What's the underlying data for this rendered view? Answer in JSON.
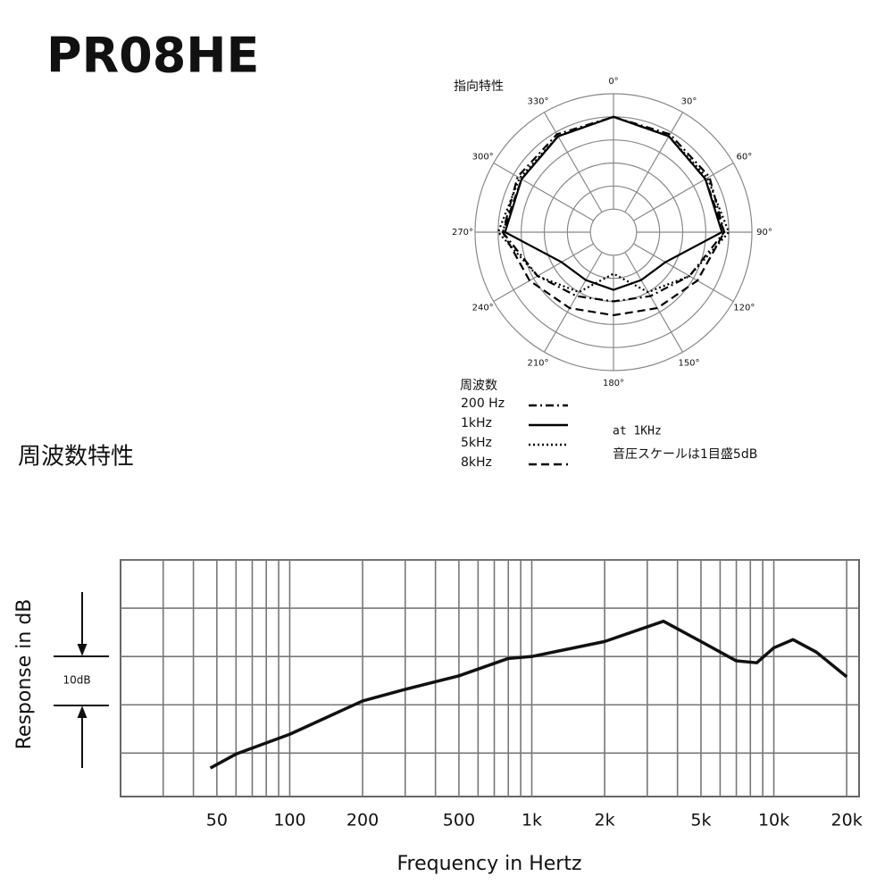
{
  "title": "PR08HE",
  "chart_data": [
    {
      "type": "polar",
      "title": "指向特性",
      "theta": [
        0,
        30,
        60,
        90,
        120,
        150,
        180,
        210,
        240,
        270,
        300,
        330
      ],
      "thetaticks": [
        {
          "value": 0,
          "label": "0°"
        },
        {
          "value": 30,
          "label": "30°"
        },
        {
          "value": 60,
          "label": "60°"
        },
        {
          "value": 90,
          "label": "90°"
        },
        {
          "value": 120,
          "label": "120°"
        },
        {
          "value": 150,
          "label": "150°"
        },
        {
          "value": 180,
          "label": "180°"
        },
        {
          "value": 210,
          "label": "210°"
        },
        {
          "value": 240,
          "label": "240°"
        },
        {
          "value": 270,
          "label": "270°"
        },
        {
          "value": 300,
          "label": "300°"
        },
        {
          "value": 330,
          "label": "330°"
        }
      ],
      "rlim": [
        -25,
        5
      ],
      "rticks": [
        -20,
        -15,
        -10,
        -5,
        0,
        5
      ],
      "legend_title": "周波数",
      "series": [
        {
          "name": "200  Hz",
          "color": "#000",
          "dash": "dashdot",
          "values": [
            0,
            -0.5,
            -1,
            -1,
            -6,
            -9,
            -10,
            -9,
            -6,
            -1,
            -1,
            -0.5
          ]
        },
        {
          "name": "1kHz",
          "color": "#000",
          "dash": "solid",
          "values": [
            0,
            -1,
            -2,
            -1.5,
            -12,
            -13,
            -12.5,
            -13,
            -12,
            -1.5,
            -2,
            -1
          ]
        },
        {
          "name": "5kHz",
          "color": "#000",
          "dash": "dotted",
          "values": [
            0,
            -1,
            -1.5,
            0,
            -6,
            -10,
            -16,
            -10,
            -6,
            0,
            -1.5,
            -1
          ]
        },
        {
          "name": "8kHz",
          "color": "#000",
          "dash": "dashed",
          "values": [
            0,
            -1,
            -2,
            -1,
            -4,
            -6,
            -7,
            -6,
            -4,
            -1,
            -2,
            -1
          ]
        }
      ],
      "notes": [
        "at 1KHz",
        "音圧スケールは1目盛5dB"
      ]
    },
    {
      "type": "line",
      "title": "周波数特性",
      "x_label": "Frequency in Hertz",
      "y_label": "Response in dB",
      "scale_label": "10dB",
      "log_x": true,
      "xlim": [
        20,
        22500
      ],
      "xticks": [
        50,
        100,
        200,
        500,
        {
          "value": 1000,
          "label": "1k"
        },
        {
          "value": 2000,
          "label": "2k"
        },
        {
          "value": 5000,
          "label": "5k"
        },
        {
          "value": 10000,
          "label": "10k"
        },
        {
          "value": 20000,
          "label": "20k"
        }
      ],
      "xminor": [
        30,
        40,
        60,
        70,
        80,
        90,
        300,
        400,
        600,
        700,
        800,
        900,
        3000,
        4000,
        6000,
        7000,
        8000,
        9000
      ],
      "ylim": [
        -29,
        20
      ],
      "yticks": [
        -20,
        -10,
        0,
        10,
        20
      ],
      "x": [
        47,
        60,
        100,
        200,
        300,
        500,
        800,
        1000,
        2000,
        3500,
        5000,
        7000,
        8500,
        10000,
        12000,
        15000,
        20000
      ],
      "series": [
        {
          "color": "#111",
          "values": [
            -23.1,
            -20.2,
            -16.1,
            -9.2,
            -6.8,
            -4.0,
            -0.4,
            0,
            3.1,
            7.3,
            3.1,
            -0.9,
            -1.3,
            1.8,
            3.5,
            0.9,
            -4.2
          ]
        }
      ]
    }
  ]
}
